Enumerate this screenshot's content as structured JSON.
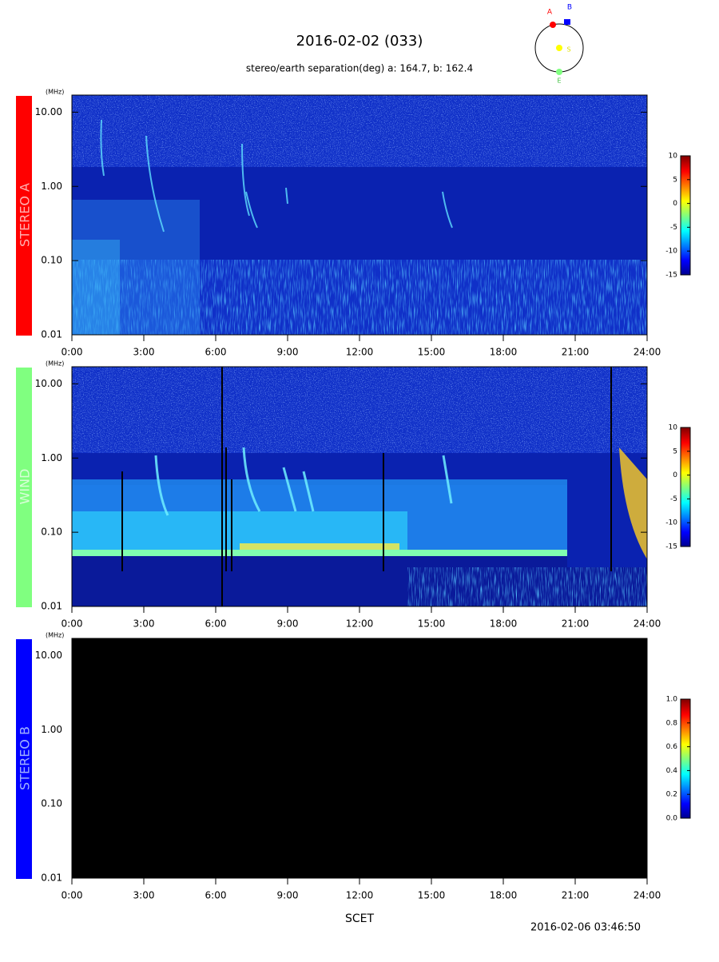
{
  "header": {
    "title": "2016-02-02 (033)",
    "subtitle": "stereo/earth separation(deg) a: 164.7, b: 162.4"
  },
  "orbit": {
    "a": "A",
    "b": "B",
    "s": "S",
    "e": "E"
  },
  "chart_data": [
    {
      "type": "spectrogram",
      "panel_label": "STEREO A",
      "panel_color": "#ff0000",
      "y_unit": "(MHz)",
      "log_y": true,
      "ylim": [
        0.01,
        17
      ],
      "yticks": [
        {
          "value": 0.01,
          "label": "0.01"
        },
        {
          "value": 0.1,
          "label": "0.10"
        },
        {
          "value": 1,
          "label": "1.00"
        },
        {
          "value": 10,
          "label": "10.00"
        }
      ],
      "xlim": [
        0,
        24
      ],
      "xticks": [
        {
          "value": 0,
          "label": "0:00"
        },
        {
          "value": 3,
          "label": "3:00"
        },
        {
          "value": 6,
          "label": "6:00"
        },
        {
          "value": 9,
          "label": "9:00"
        },
        {
          "value": 12,
          "label": "12:00"
        },
        {
          "value": 15,
          "label": "15:00"
        },
        {
          "value": 18,
          "label": "18:00"
        },
        {
          "value": 21,
          "label": "21:00"
        },
        {
          "value": 24,
          "label": "24:00"
        }
      ],
      "colorbar": {
        "lim": [
          -15,
          10
        ],
        "ticks": [
          10,
          5,
          0,
          -5,
          -10,
          -15
        ]
      }
    },
    {
      "type": "spectrogram",
      "panel_label": "WIND",
      "panel_color": "#80ff80",
      "y_unit": "(MHz)",
      "log_y": true,
      "ylim": [
        0.01,
        17
      ],
      "yticks": [
        {
          "value": 0.01,
          "label": "0.01"
        },
        {
          "value": 0.1,
          "label": "0.10"
        },
        {
          "value": 1,
          "label": "1.00"
        },
        {
          "value": 10,
          "label": "10.00"
        }
      ],
      "xlim": [
        0,
        24
      ],
      "xticks": [
        {
          "value": 0,
          "label": "0:00"
        },
        {
          "value": 3,
          "label": "3:00"
        },
        {
          "value": 6,
          "label": "6:00"
        },
        {
          "value": 9,
          "label": "9:00"
        },
        {
          "value": 12,
          "label": "12:00"
        },
        {
          "value": 15,
          "label": "15:00"
        },
        {
          "value": 18,
          "label": "18:00"
        },
        {
          "value": 21,
          "label": "21:00"
        },
        {
          "value": 24,
          "label": "24:00"
        }
      ],
      "colorbar": {
        "lim": [
          -15,
          10
        ],
        "ticks": [
          10,
          5,
          0,
          -5,
          -10,
          -15
        ]
      }
    },
    {
      "type": "spectrogram",
      "panel_label": "STEREO B",
      "panel_color": "#0000ff",
      "y_unit": "(MHz)",
      "log_y": true,
      "ylim": [
        0.01,
        17
      ],
      "yticks": [
        {
          "value": 0.01,
          "label": "0.01"
        },
        {
          "value": 0.1,
          "label": "0.10"
        },
        {
          "value": 1,
          "label": "1.00"
        },
        {
          "value": 10,
          "label": "10.00"
        }
      ],
      "xlim": [
        0,
        24
      ],
      "xticks": [
        {
          "value": 0,
          "label": "0:00"
        },
        {
          "value": 3,
          "label": "3:00"
        },
        {
          "value": 6,
          "label": "6:00"
        },
        {
          "value": 9,
          "label": "9:00"
        },
        {
          "value": 12,
          "label": "12:00"
        },
        {
          "value": 15,
          "label": "15:00"
        },
        {
          "value": 18,
          "label": "18:00"
        },
        {
          "value": 21,
          "label": "21:00"
        },
        {
          "value": 24,
          "label": "24:00"
        }
      ],
      "colorbar": {
        "lim": [
          0,
          1
        ],
        "ticks": [
          {
            "value": 0,
            "label": "0.0"
          },
          {
            "value": 0.2,
            "label": "0.2"
          },
          {
            "value": 0.4,
            "label": "0.4"
          },
          {
            "value": 0.6,
            "label": "0.6"
          },
          {
            "value": 0.8,
            "label": "0.8"
          },
          {
            "value": 1,
            "label": "1.0"
          }
        ]
      }
    }
  ],
  "footer": {
    "xlabel": "SCET",
    "timestamp": "2016-02-06 03:46:50"
  }
}
